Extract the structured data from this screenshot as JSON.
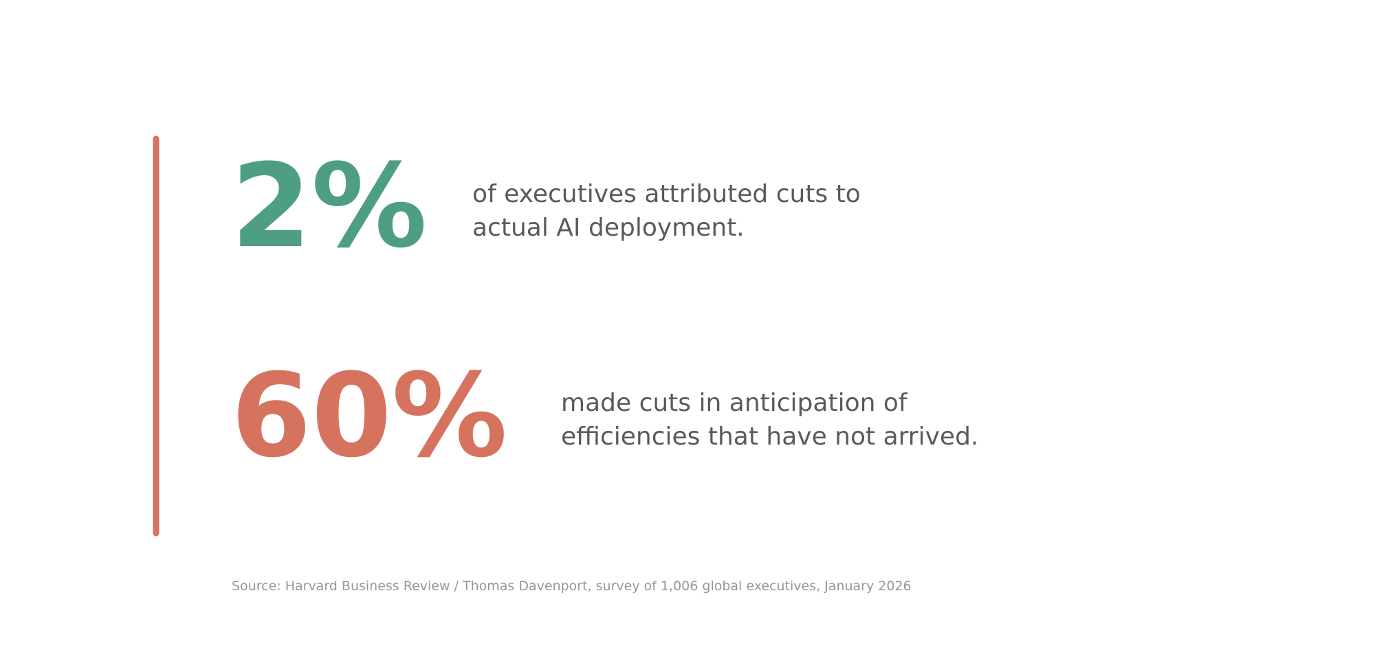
{
  "stats": [
    {
      "figure": "2%",
      "lines": [
        "of executives attributed cuts to",
        "actual AI deployment."
      ]
    },
    {
      "figure": "60%",
      "lines": [
        "made cuts in anticipation of",
        "efficiencies that have not arrived."
      ]
    }
  ],
  "source": "Source: Harvard Business Review / Thomas Davenport, survey of 1,006 global executives, January 2026"
}
